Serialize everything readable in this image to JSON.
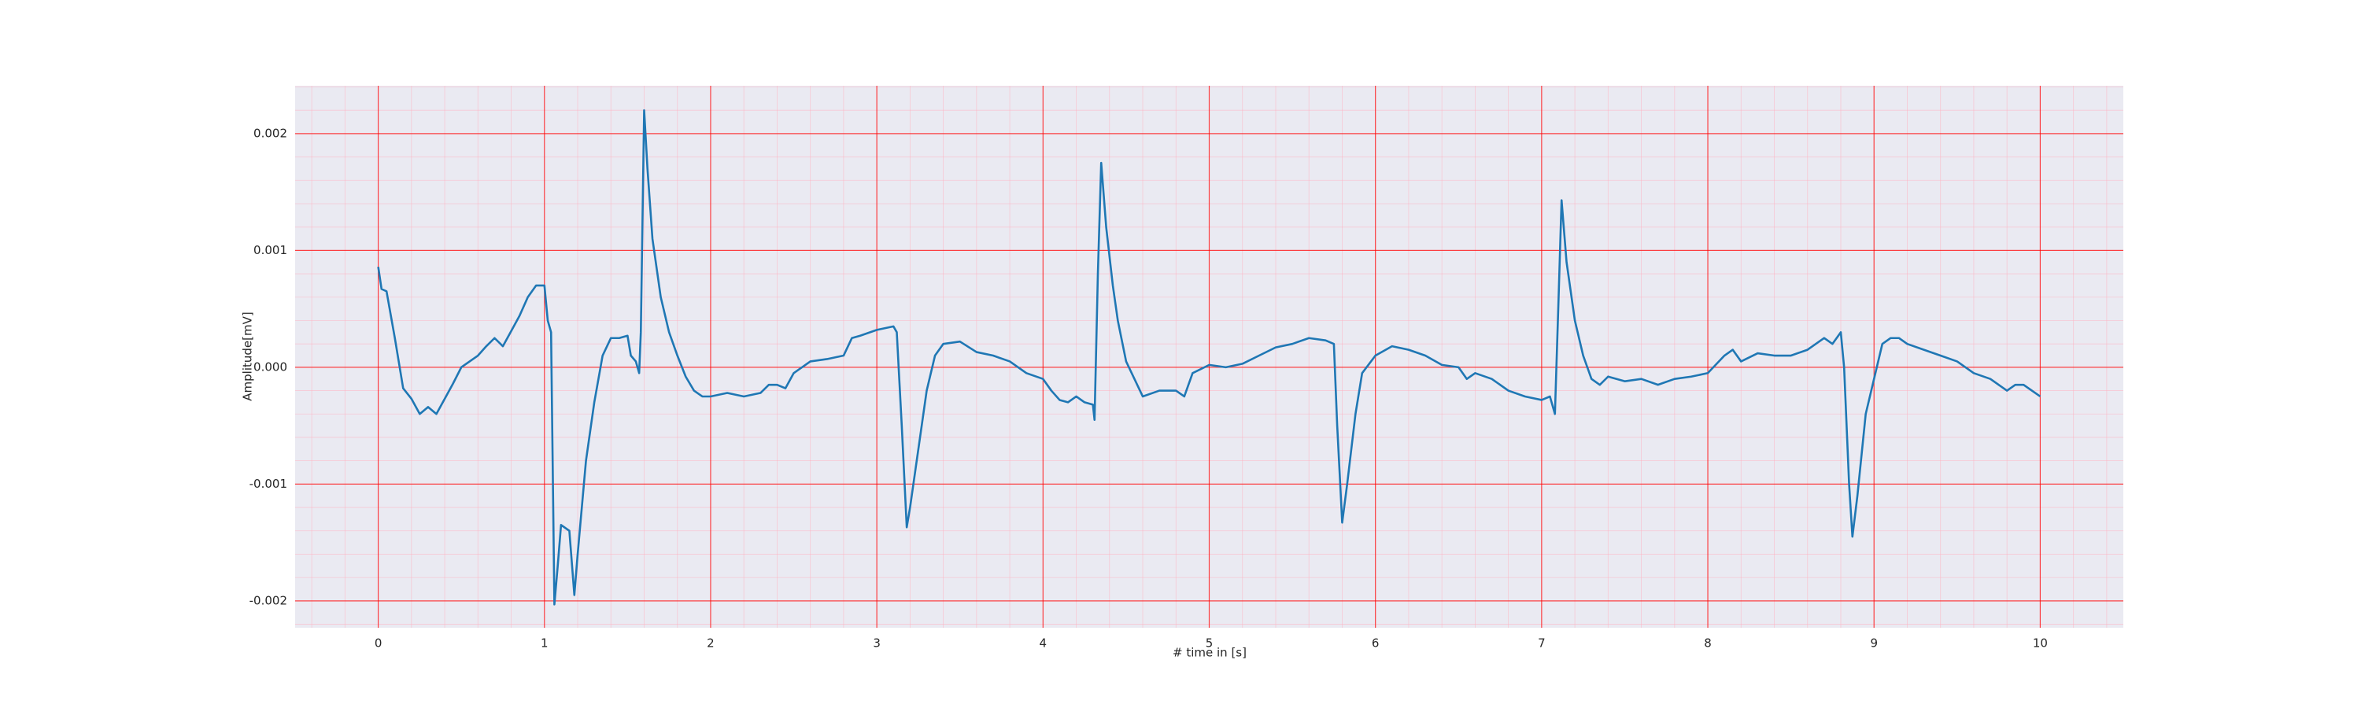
{
  "chart_data": {
    "type": "line",
    "xlabel": "# time in [s]",
    "ylabel": "Amplitude[mV]",
    "xlim": [
      -0.5,
      10.5
    ],
    "xticks": [
      0,
      1,
      2,
      3,
      4,
      5,
      6,
      7,
      8,
      9,
      10
    ],
    "ylim": [
      -0.00223,
      0.00241
    ],
    "yticks": [
      -0.002,
      -0.001,
      {
        "value": 0,
        "label": "0.000"
      },
      0.001,
      0.002
    ],
    "grid": true,
    "minor_grid": true,
    "background": "#eaeaf2",
    "grid_color": "#ff0000",
    "minor_grid_color": "#ffb0c0",
    "series": [
      {
        "color": "#1f77b4",
        "x": [
          0,
          0.02,
          0.05,
          0.1,
          0.15,
          0.2,
          0.25,
          0.3,
          0.35,
          0.4,
          0.45,
          0.5,
          0.55,
          0.6,
          0.65,
          0.7,
          0.75,
          0.8,
          0.85,
          0.9,
          0.95,
          1.0,
          1.02,
          1.04,
          1.06,
          1.08,
          1.1,
          1.15,
          1.18,
          1.2,
          1.25,
          1.3,
          1.35,
          1.4,
          1.45,
          1.5,
          1.52,
          1.55,
          1.57,
          1.58,
          1.6,
          1.62,
          1.65,
          1.7,
          1.75,
          1.8,
          1.85,
          1.9,
          1.95,
          2.0,
          2.1,
          2.2,
          2.3,
          2.35,
          2.4,
          2.45,
          2.5,
          2.6,
          2.7,
          2.8,
          2.85,
          2.9,
          3.0,
          3.1,
          3.12,
          3.15,
          3.18,
          3.2,
          3.25,
          3.3,
          3.35,
          3.4,
          3.5,
          3.6,
          3.7,
          3.8,
          3.9,
          4.0,
          4.05,
          4.1,
          4.15,
          4.2,
          4.25,
          4.3,
          4.31,
          4.33,
          4.35,
          4.38,
          4.42,
          4.45,
          4.5,
          4.55,
          4.6,
          4.7,
          4.8,
          4.85,
          4.9,
          5.0,
          5.1,
          5.2,
          5.3,
          5.4,
          5.5,
          5.6,
          5.7,
          5.75,
          5.77,
          5.8,
          5.83,
          5.88,
          5.92,
          6.0,
          6.1,
          6.2,
          6.3,
          6.4,
          6.5,
          6.55,
          6.6,
          6.7,
          6.8,
          6.9,
          7.0,
          7.05,
          7.08,
          7.1,
          7.12,
          7.15,
          7.2,
          7.25,
          7.3,
          7.35,
          7.4,
          7.5,
          7.6,
          7.7,
          7.8,
          7.9,
          8.0,
          8.1,
          8.15,
          8.2,
          8.3,
          8.4,
          8.5,
          8.6,
          8.7,
          8.75,
          8.8,
          8.82,
          8.85,
          8.87,
          8.9,
          8.95,
          9.0,
          9.05,
          9.1,
          9.15,
          9.2,
          9.3,
          9.4,
          9.5,
          9.6,
          9.7,
          9.8,
          9.85,
          9.9,
          10.0
        ],
        "values": [
          0.00086,
          0.00067,
          0.00065,
          0.00025,
          -0.00018,
          -0.00027,
          -0.0004,
          -0.00034,
          -0.0004,
          -0.00027,
          -0.00014,
          0.0,
          5e-05,
          0.0001,
          0.00018,
          0.00025,
          0.00018,
          0.00031,
          0.00044,
          0.0006,
          0.0007,
          0.0007,
          0.0004,
          0.0003,
          -0.00203,
          -0.0017,
          -0.00135,
          -0.0014,
          -0.00195,
          -0.0016,
          -0.0008,
          -0.0003,
          0.0001,
          0.00025,
          0.00025,
          0.00027,
          0.0001,
          5e-05,
          -5e-05,
          0.0003,
          0.0022,
          0.0017,
          0.0011,
          0.0006,
          0.0003,
          0.0001,
          -8e-05,
          -0.0002,
          -0.00025,
          -0.00025,
          -0.00022,
          -0.00025,
          -0.00022,
          -0.00015,
          -0.00015,
          -0.00018,
          -5e-05,
          5e-05,
          7e-05,
          0.0001,
          0.00025,
          0.00027,
          0.00032,
          0.00035,
          0.0003,
          -0.0005,
          -0.00137,
          -0.0012,
          -0.0007,
          -0.0002,
          0.0001,
          0.0002,
          0.00022,
          0.00013,
          0.0001,
          5e-05,
          -5e-05,
          -0.0001,
          -0.0002,
          -0.00028,
          -0.0003,
          -0.00025,
          -0.0003,
          -0.00032,
          -0.00045,
          0.0008,
          0.00175,
          0.0012,
          0.0007,
          0.0004,
          5e-05,
          -0.0001,
          -0.00025,
          -0.0002,
          -0.0002,
          -0.00025,
          -5e-05,
          2e-05,
          0.0,
          3e-05,
          0.0001,
          0.00017,
          0.0002,
          0.00025,
          0.00023,
          0.0002,
          -0.0005,
          -0.00133,
          -0.001,
          -0.0004,
          -5e-05,
          0.0001,
          0.00018,
          0.00015,
          0.0001,
          2e-05,
          0.0,
          -0.0001,
          -5e-05,
          -0.0001,
          -0.0002,
          -0.00025,
          -0.00028,
          -0.00025,
          -0.0004,
          0.0005,
          0.00143,
          0.0009,
          0.0004,
          0.0001,
          -0.0001,
          -0.00015,
          -8e-05,
          -0.00012,
          -0.0001,
          -0.00015,
          -0.0001,
          -8e-05,
          -5e-05,
          0.0001,
          0.00015,
          5e-05,
          0.00012,
          0.0001,
          0.0001,
          0.00015,
          0.00025,
          0.0002,
          0.0003,
          0.0,
          -0.001,
          -0.00145,
          -0.0011,
          -0.0004,
          -0.0001,
          0.0002,
          0.00025,
          0.00025,
          0.0002,
          0.00015,
          0.0001,
          5e-05,
          -5e-05,
          -0.0001,
          -0.0002,
          -0.00015,
          -0.00015,
          -0.00025
        ]
      }
    ]
  }
}
